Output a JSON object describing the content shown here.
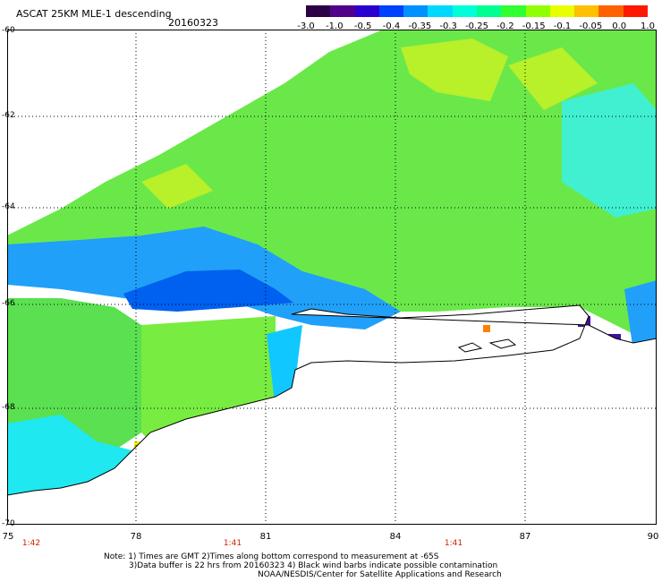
{
  "header": {
    "title": "ASCAT 25KM MLE-1 descending",
    "date": "20160323"
  },
  "colorbar": {
    "colors": [
      "#2b0044",
      "#50008a",
      "#2a00d0",
      "#0040ff",
      "#0090ff",
      "#00d8ff",
      "#00ffd8",
      "#00ff90",
      "#30ff30",
      "#90ff00",
      "#e8ff00",
      "#ffc000",
      "#ff6000",
      "#ff1800"
    ],
    "ticks": [
      "-3.0",
      "-1.0",
      "-0.5",
      "-0.4",
      "-0.35",
      "-0.3",
      "-0.25",
      "-0.2",
      "-0.15",
      "-0.1",
      "-0.05",
      "0.0",
      "1.0"
    ]
  },
  "axes": {
    "lat_labels": [
      "-60",
      "-62",
      "-64",
      "-66",
      "-68",
      "-70"
    ],
    "lon_labels": [
      "75",
      "78",
      "81",
      "84",
      "87",
      "90"
    ]
  },
  "times": [
    "1:42",
    "1:41",
    "1:41"
  ],
  "note": {
    "line1": "Note: 1) Times are GMT 2)Times along bottom correspond to measurement at -65S",
    "line2": "3)Data buffer is 22 hrs from 20160323 4) Black wind barbs indicate possible contamination",
    "line3": "NOAA/NESDIS/Center for Satellite Applications and Research"
  }
}
